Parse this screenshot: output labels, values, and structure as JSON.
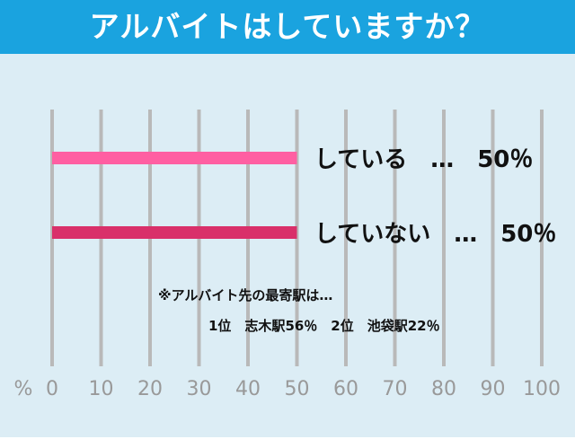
{
  "title": "アルバイトはしていますか？",
  "colors": {
    "title_bar": "#1aa3df",
    "background": "#dcedf5",
    "grid": "#b9b9b9",
    "tick_text": "#999999"
  },
  "notes": {
    "line1": "※アルバイト先の最寄駅は…",
    "line2": "1位　志木駅56％　2位　池袋駅22％"
  },
  "chart_data": {
    "type": "bar",
    "orientation": "horizontal",
    "categories": [
      "している",
      "していない"
    ],
    "values": [
      50,
      50
    ],
    "value_labels": [
      "している　…　50％",
      "していない　…　50％"
    ],
    "bar_colors": [
      "#ff5fa2",
      "#d9306a"
    ],
    "xlabel": "%",
    "xlim": [
      0,
      100
    ],
    "xticks": [
      "0",
      "10",
      "20",
      "30",
      "40",
      "50",
      "60",
      "70",
      "80",
      "90",
      "100"
    ],
    "grid": true
  }
}
